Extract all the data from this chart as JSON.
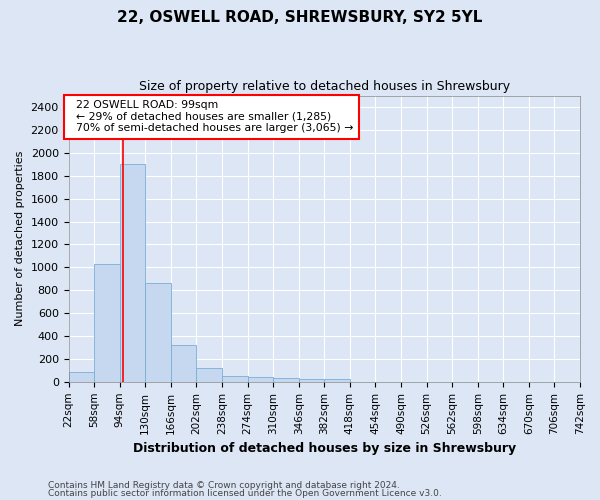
{
  "title": "22, OSWELL ROAD, SHREWSBURY, SY2 5YL",
  "subtitle": "Size of property relative to detached houses in Shrewsbury",
  "xlabel": "Distribution of detached houses by size in Shrewsbury",
  "ylabel": "Number of detached properties",
  "footnote1": "Contains HM Land Registry data © Crown copyright and database right 2024.",
  "footnote2": "Contains public sector information licensed under the Open Government Licence v3.0.",
  "annotation_line1": "22 OSWELL ROAD: 99sqm",
  "annotation_line2": "← 29% of detached houses are smaller (1,285)",
  "annotation_line3": "70% of semi-detached houses are larger (3,065) →",
  "bar_color": "#c5d8f0",
  "bar_edge_color": "#7aadd4",
  "redline_color": "red",
  "property_size": 99,
  "bin_edges": [
    22,
    58,
    94,
    130,
    166,
    202,
    238,
    274,
    310,
    346,
    382,
    418,
    454,
    490,
    526,
    562,
    598,
    634,
    670,
    706,
    742
  ],
  "bar_heights": [
    90,
    1030,
    1900,
    860,
    320,
    120,
    55,
    40,
    30,
    25,
    25,
    0,
    0,
    0,
    0,
    0,
    0,
    0,
    0,
    0
  ],
  "ylim": [
    0,
    2500
  ],
  "yticks": [
    0,
    200,
    400,
    600,
    800,
    1000,
    1200,
    1400,
    1600,
    1800,
    2000,
    2200,
    2400
  ],
  "background_color": "#dce6f5",
  "plot_bg_color": "#dce6f5",
  "grid_color": "#ffffff",
  "title_fontsize": 11,
  "subtitle_fontsize": 9,
  "ylabel_fontsize": 8,
  "xlabel_fontsize": 9,
  "tick_fontsize": 7.5,
  "ytick_fontsize": 8
}
